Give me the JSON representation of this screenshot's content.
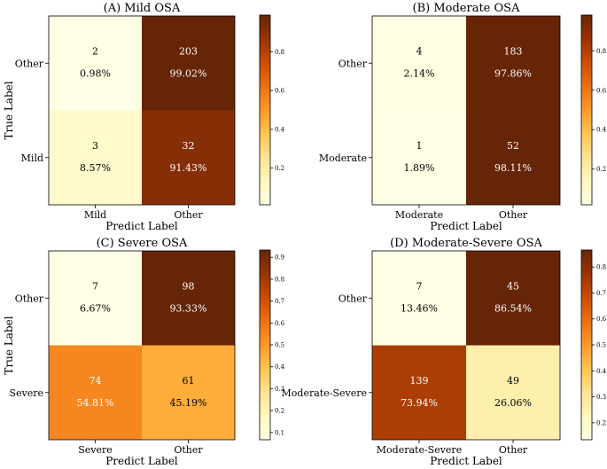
{
  "chart_data": [
    {
      "type": "heatmap",
      "title": "(A) Mild OSA",
      "xlabel": "Predict Label",
      "ylabel": "True Label",
      "row_labels": [
        "Other",
        "Mild"
      ],
      "col_labels": [
        "Mild",
        "Other"
      ],
      "cells": [
        [
          {
            "count": "2",
            "pct": "0.98%",
            "value": 0.0098
          },
          {
            "count": "203",
            "pct": "99.02%",
            "value": 0.9902
          }
        ],
        [
          {
            "count": "3",
            "pct": "8.57%",
            "value": 0.0857
          },
          {
            "count": "32",
            "pct": "91.43%",
            "value": 0.9143
          }
        ]
      ],
      "colorbar": {
        "ticks": [
          "0.2",
          "0.4",
          "0.6",
          "0.8"
        ],
        "tick_values": [
          0.2,
          0.4,
          0.6,
          0.8
        ],
        "min": 0.0098,
        "max": 0.9902
      }
    },
    {
      "type": "heatmap",
      "title": "(B) Moderate OSA",
      "xlabel": "Predict Label",
      "ylabel": "",
      "row_labels": [
        "Other",
        "Moderate"
      ],
      "col_labels": [
        "Moderate",
        "Other"
      ],
      "cells": [
        [
          {
            "count": "4",
            "pct": "2.14%",
            "value": 0.0214
          },
          {
            "count": "183",
            "pct": "97.86%",
            "value": 0.9786
          }
        ],
        [
          {
            "count": "1",
            "pct": "1.89%",
            "value": 0.0189
          },
          {
            "count": "52",
            "pct": "98.11%",
            "value": 0.9811
          }
        ]
      ],
      "colorbar": {
        "ticks": [
          "0.2",
          "0.4",
          "0.6",
          "0.8"
        ],
        "tick_values": [
          0.2,
          0.4,
          0.6,
          0.8
        ],
        "min": 0.0189,
        "max": 0.9811
      }
    },
    {
      "type": "heatmap",
      "title": "(C) Severe OSA",
      "xlabel": "Predict Label",
      "ylabel": "True Label",
      "row_labels": [
        "Other",
        "Severe"
      ],
      "col_labels": [
        "Severe",
        "Other"
      ],
      "cells": [
        [
          {
            "count": "7",
            "pct": "6.67%",
            "value": 0.0667
          },
          {
            "count": "98",
            "pct": "93.33%",
            "value": 0.9333
          }
        ],
        [
          {
            "count": "74",
            "pct": "54.81%",
            "value": 0.5481
          },
          {
            "count": "61",
            "pct": "45.19%",
            "value": 0.4519
          }
        ]
      ],
      "colorbar": {
        "ticks": [
          "0.1",
          "0.2",
          "0.3",
          "0.4",
          "0.5",
          "0.6",
          "0.7",
          "0.8",
          "0.9"
        ],
        "tick_values": [
          0.1,
          0.2,
          0.3,
          0.4,
          0.5,
          0.6,
          0.7,
          0.8,
          0.9
        ],
        "min": 0.0667,
        "max": 0.9333
      }
    },
    {
      "type": "heatmap",
      "title": "(D) Moderate-Severe OSA",
      "xlabel": "Predict Label",
      "ylabel": "",
      "row_labels": [
        "Other",
        "Moderate-Severe"
      ],
      "col_labels": [
        "Moderate-Severe",
        "Other"
      ],
      "cells": [
        [
          {
            "count": "7",
            "pct": "13.46%",
            "value": 0.1346
          },
          {
            "count": "45",
            "pct": "86.54%",
            "value": 0.8654
          }
        ],
        [
          {
            "count": "139",
            "pct": "73.94%",
            "value": 0.7394
          },
          {
            "count": "49",
            "pct": "26.06%",
            "value": 0.2606
          }
        ]
      ],
      "colorbar": {
        "ticks": [
          "0.2",
          "0.3",
          "0.4",
          "0.5",
          "0.6",
          "0.7",
          "0.8"
        ],
        "tick_values": [
          0.2,
          0.3,
          0.4,
          0.5,
          0.6,
          0.7,
          0.8
        ],
        "min": 0.1346,
        "max": 0.8654
      }
    }
  ]
}
